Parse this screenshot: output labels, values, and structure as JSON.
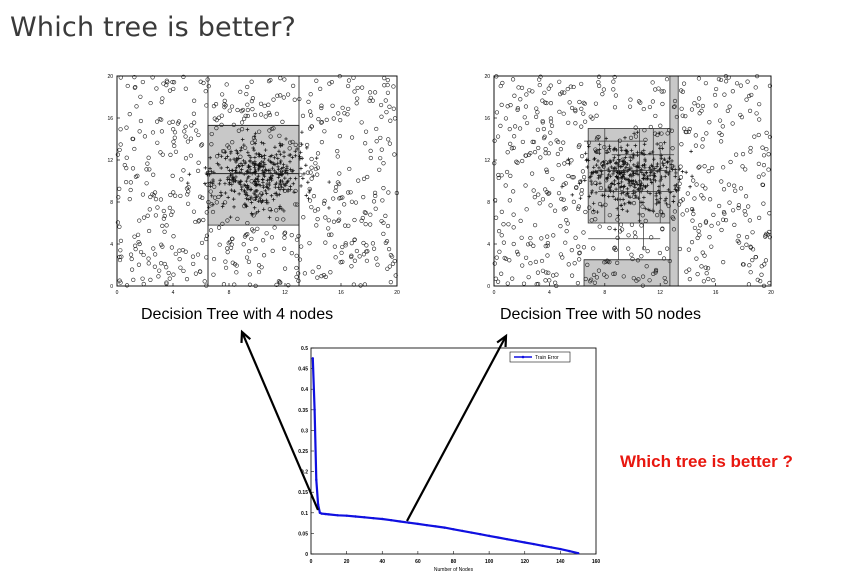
{
  "slide": {
    "title": "Which tree is better?",
    "question": "Which tree is better ?"
  },
  "chart_data": [
    {
      "type": "scatter",
      "caption": "Decision Tree with 4 nodes",
      "xlim": [
        0,
        20
      ],
      "ylim": [
        0,
        20
      ],
      "x_ticks": [
        0,
        4,
        8,
        12,
        16,
        20
      ],
      "y_ticks": [
        0,
        4,
        8,
        12,
        16,
        20
      ],
      "series": [
        {
          "marker": "o"
        },
        {
          "marker": "+"
        }
      ],
      "regions": [
        {
          "x": [
            0,
            6.5
          ],
          "y": [
            0,
            20
          ],
          "shaded": false
        },
        {
          "x": [
            6.5,
            13
          ],
          "y": [
            0,
            10.7
          ],
          "shaded": false
        },
        {
          "x": [
            6.5,
            13
          ],
          "y": [
            10.7,
            15.3
          ],
          "shaded": false
        },
        {
          "x": [
            6.5,
            13
          ],
          "y": [
            5.8,
            15.3
          ],
          "shaded": true
        },
        {
          "x": [
            13,
            20
          ],
          "y": [
            0,
            20
          ],
          "shaded": false
        }
      ]
    },
    {
      "type": "scatter",
      "caption": "Decision Tree with 50 nodes",
      "xlim": [
        0,
        20
      ],
      "ylim": [
        0,
        20
      ],
      "x_ticks": [
        0,
        4,
        8,
        12,
        16,
        20
      ],
      "y_ticks": [
        0,
        4,
        8,
        12,
        16,
        20
      ],
      "series": [
        {
          "marker": "o"
        },
        {
          "marker": "+"
        }
      ],
      "regions": [
        {
          "x": [
            6.8,
            13.2
          ],
          "y": [
            6,
            15
          ],
          "shaded": true
        },
        {
          "x": [
            6.5,
            12.8
          ],
          "y": [
            0,
            2.5
          ],
          "shaded": true
        },
        {
          "x": [
            12.7,
            13.3
          ],
          "y": [
            0,
            20
          ],
          "shaded": true
        }
      ]
    },
    {
      "type": "line",
      "xlabel": "Number of Nodes",
      "ylabel": "",
      "xlim": [
        0,
        160
      ],
      "ylim": [
        0,
        0.5
      ],
      "x_ticks": [
        0,
        20,
        40,
        60,
        80,
        100,
        120,
        140,
        160
      ],
      "y_ticks": [
        0,
        0.05,
        0.1,
        0.15,
        0.2,
        0.25,
        0.3,
        0.35,
        0.4,
        0.45,
        0.5
      ],
      "legend": "top-right",
      "series": [
        {
          "name": "Train Error",
          "color": "#1010e0",
          "x": [
            1,
            2,
            3,
            4,
            5,
            6,
            8,
            10,
            15,
            20,
            25,
            30,
            35,
            40,
            45,
            50,
            55,
            60,
            65,
            70,
            75,
            80,
            85,
            90,
            95,
            100,
            105,
            110,
            115,
            120,
            125,
            130,
            135,
            140,
            145,
            150
          ],
          "y": [
            0.475,
            0.35,
            0.18,
            0.12,
            0.1,
            0.098,
            0.097,
            0.096,
            0.094,
            0.093,
            0.091,
            0.089,
            0.087,
            0.085,
            0.082,
            0.079,
            0.076,
            0.073,
            0.07,
            0.067,
            0.064,
            0.06,
            0.056,
            0.052,
            0.048,
            0.044,
            0.04,
            0.036,
            0.032,
            0.028,
            0.024,
            0.02,
            0.016,
            0.012,
            0.007,
            0.002
          ]
        }
      ]
    }
  ],
  "arrows": {
    "color": "#000000"
  }
}
